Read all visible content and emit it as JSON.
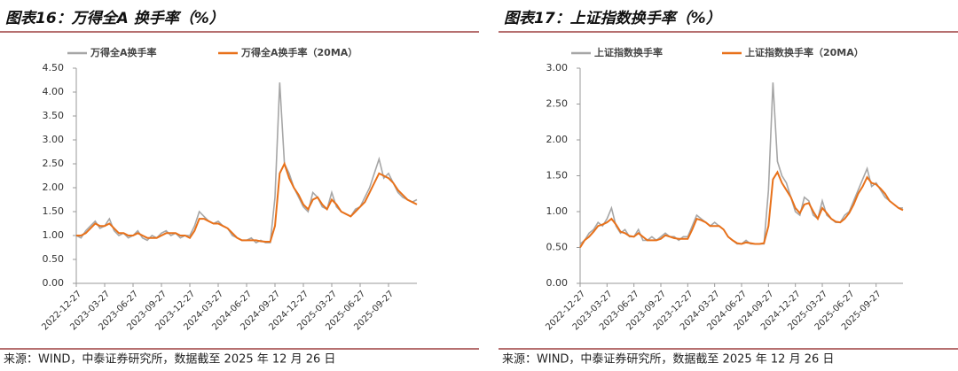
{
  "chart_data": [
    {
      "type": "line",
      "title": "图表16：万得全A 换手率（%）",
      "source": "来源：WIND，中泰证券研究所，数据截至 2025 年 12 月 26 日",
      "categories": [
        "2022-12-27",
        null,
        null,
        null,
        null,
        null,
        "2023-03-27",
        null,
        null,
        null,
        null,
        null,
        "2023-06-27",
        null,
        null,
        null,
        null,
        null,
        "2023-09-27",
        null,
        null,
        null,
        null,
        null,
        "2023-12-27",
        null,
        null,
        null,
        null,
        null,
        "2024-03-27",
        null,
        null,
        null,
        null,
        null,
        "2024-06-27",
        null,
        null,
        null,
        null,
        null,
        "2024-09-27",
        null,
        null,
        null,
        null,
        null,
        "2024-12-27",
        null,
        null,
        null,
        null,
        null,
        "2025-03-27",
        null,
        null,
        null,
        null,
        null,
        "2025-06-27",
        null,
        null,
        null,
        null,
        null,
        "2025-09-27",
        null,
        null,
        null,
        null,
        null,
        null
      ],
      "series": [
        {
          "name": "万得全A换手率",
          "color": "#a6a6a6",
          "values": [
            1.0,
            0.95,
            1.1,
            1.2,
            1.3,
            1.15,
            1.2,
            1.35,
            1.1,
            1.0,
            1.05,
            0.95,
            1.0,
            1.1,
            0.95,
            0.9,
            1.0,
            0.95,
            1.05,
            1.1,
            1.0,
            1.05,
            0.95,
            1.0,
            1.0,
            1.2,
            1.5,
            1.4,
            1.3,
            1.25,
            1.3,
            1.2,
            1.15,
            1.0,
            0.95,
            0.9,
            0.9,
            0.95,
            0.85,
            0.9,
            0.85,
            0.85,
            1.8,
            4.2,
            2.5,
            2.3,
            2.0,
            1.8,
            1.6,
            1.5,
            1.9,
            1.8,
            1.6,
            1.55,
            1.9,
            1.6,
            1.5,
            1.45,
            1.4,
            1.55,
            1.6,
            1.8,
            2.0,
            2.3,
            2.6,
            2.2,
            2.3,
            2.1,
            1.9,
            1.8,
            1.75,
            1.7,
            1.75
          ]
        },
        {
          "name": "万得全A换手率（20MA）",
          "color": "#e8711a",
          "values": [
            1.0,
            1.0,
            1.05,
            1.15,
            1.25,
            1.2,
            1.2,
            1.25,
            1.15,
            1.05,
            1.05,
            1.0,
            1.0,
            1.05,
            1.0,
            0.95,
            0.95,
            0.95,
            1.0,
            1.05,
            1.05,
            1.05,
            1.0,
            1.0,
            0.95,
            1.1,
            1.35,
            1.35,
            1.3,
            1.25,
            1.25,
            1.2,
            1.15,
            1.05,
            0.95,
            0.9,
            0.9,
            0.9,
            0.9,
            0.88,
            0.87,
            0.87,
            1.2,
            2.3,
            2.5,
            2.2,
            2.0,
            1.85,
            1.65,
            1.55,
            1.75,
            1.8,
            1.65,
            1.55,
            1.75,
            1.65,
            1.5,
            1.45,
            1.4,
            1.5,
            1.6,
            1.7,
            1.9,
            2.1,
            2.3,
            2.25,
            2.2,
            2.1,
            1.95,
            1.85,
            1.75,
            1.7,
            1.65
          ]
        }
      ],
      "ylim": [
        0,
        4.5
      ],
      "yticks": [
        {
          "value": 0,
          "label": "0.00"
        },
        {
          "value": 0.5,
          "label": "0.50"
        },
        {
          "value": 1,
          "label": "1.00"
        },
        {
          "value": 1.5,
          "label": "1.50"
        },
        {
          "value": 2,
          "label": "2.00"
        },
        {
          "value": 2.5,
          "label": "2.50"
        },
        {
          "value": 3,
          "label": "3.00"
        },
        {
          "value": 3.5,
          "label": "3.50"
        },
        {
          "value": 4,
          "label": "4.00"
        },
        {
          "value": 4.5,
          "label": "4.50"
        }
      ],
      "grid": false
    },
    {
      "type": "line",
      "title": "图表17：上证指数换手率（%）",
      "source": "来源：WIND，中泰证券研究所，数据截至 2025 年 12 月 26 日",
      "categories": [
        "2022-12-27",
        null,
        null,
        null,
        null,
        null,
        "2023-03-27",
        null,
        null,
        null,
        null,
        null,
        "2023-06-27",
        null,
        null,
        null,
        null,
        null,
        "2023-09-27",
        null,
        null,
        null,
        null,
        null,
        "2023-12-27",
        null,
        null,
        null,
        null,
        null,
        "2024-03-27",
        null,
        null,
        null,
        null,
        null,
        "2024-06-27",
        null,
        null,
        null,
        null,
        null,
        "2024-09-27",
        null,
        null,
        null,
        null,
        null,
        "2024-12-27",
        null,
        null,
        null,
        null,
        null,
        "2025-03-27",
        null,
        null,
        null,
        null,
        null,
        "2025-06-27",
        null,
        null,
        null,
        null,
        null,
        "2025-09-27",
        null,
        null,
        null,
        null,
        null,
        null
      ],
      "series": [
        {
          "name": "上证指数换手率",
          "color": "#a6a6a6",
          "values": [
            0.55,
            0.6,
            0.7,
            0.75,
            0.85,
            0.8,
            0.9,
            1.05,
            0.8,
            0.7,
            0.75,
            0.65,
            0.65,
            0.75,
            0.6,
            0.6,
            0.65,
            0.6,
            0.65,
            0.7,
            0.65,
            0.65,
            0.6,
            0.65,
            0.65,
            0.8,
            0.95,
            0.9,
            0.85,
            0.8,
            0.85,
            0.8,
            0.75,
            0.65,
            0.6,
            0.55,
            0.55,
            0.6,
            0.55,
            0.55,
            0.55,
            0.55,
            1.3,
            2.8,
            1.7,
            1.5,
            1.4,
            1.2,
            1.0,
            0.95,
            1.2,
            1.15,
            0.95,
            0.9,
            1.15,
            0.95,
            0.9,
            0.85,
            0.85,
            0.95,
            1.0,
            1.15,
            1.3,
            1.45,
            1.6,
            1.35,
            1.4,
            1.3,
            1.2,
            1.15,
            1.1,
            1.05,
            1.05
          ]
        },
        {
          "name": "上证指数换手率（20MA）",
          "color": "#e8711a",
          "values": [
            0.5,
            0.6,
            0.65,
            0.72,
            0.8,
            0.82,
            0.85,
            0.9,
            0.82,
            0.72,
            0.7,
            0.66,
            0.65,
            0.7,
            0.65,
            0.6,
            0.6,
            0.6,
            0.62,
            0.67,
            0.65,
            0.63,
            0.62,
            0.62,
            0.62,
            0.75,
            0.9,
            0.88,
            0.85,
            0.8,
            0.8,
            0.8,
            0.75,
            0.65,
            0.6,
            0.56,
            0.55,
            0.57,
            0.56,
            0.55,
            0.55,
            0.56,
            0.8,
            1.45,
            1.55,
            1.4,
            1.3,
            1.2,
            1.05,
            0.98,
            1.1,
            1.12,
            1.0,
            0.9,
            1.05,
            0.98,
            0.9,
            0.86,
            0.85,
            0.9,
            0.98,
            1.1,
            1.25,
            1.35,
            1.48,
            1.4,
            1.38,
            1.32,
            1.25,
            1.15,
            1.1,
            1.05,
            1.02
          ]
        }
      ],
      "ylim": [
        0,
        3
      ],
      "yticks": [
        {
          "value": 0,
          "label": "0.00"
        },
        {
          "value": 0.5,
          "label": "0.50"
        },
        {
          "value": 1,
          "label": "1.00"
        },
        {
          "value": 1.5,
          "label": "1.50"
        },
        {
          "value": 2,
          "label": "2.00"
        },
        {
          "value": 2.5,
          "label": "2.50"
        },
        {
          "value": 3,
          "label": "3.00"
        }
      ],
      "grid": false
    }
  ]
}
